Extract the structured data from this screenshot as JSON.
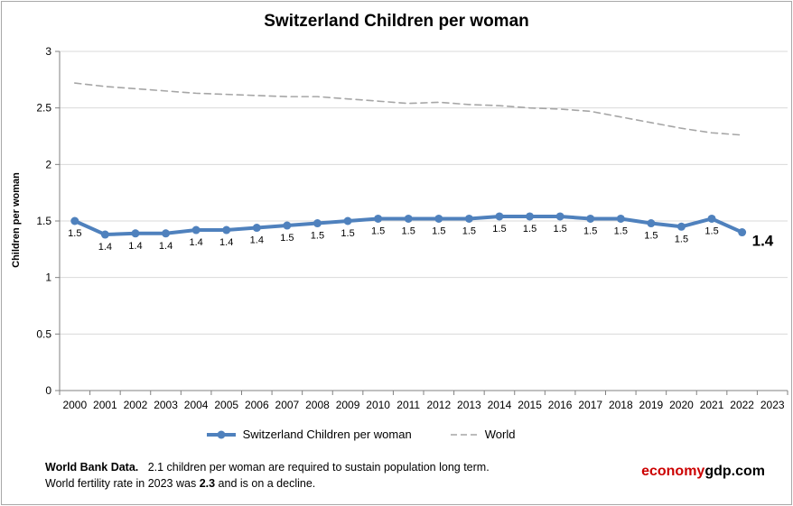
{
  "title": "Switzerland Children per woman",
  "colors": {
    "switzerland_line": "#4F81BD",
    "world_line": "#A6A6A6",
    "gridline": "#D9D9D9",
    "axis": "#808080",
    "brand_red": "#CC0000",
    "text": "#000000"
  },
  "chart_data": {
    "type": "line",
    "title": "Switzerland Children per woman",
    "xlabel": "",
    "ylabel": "Children per woman",
    "ylim": [
      0,
      3
    ],
    "ytick_step": 0.5,
    "grid": true,
    "legend_position": "bottom",
    "x": [
      "2000",
      "2001",
      "2002",
      "2003",
      "2004",
      "2005",
      "2006",
      "2007",
      "2008",
      "2009",
      "2010",
      "2011",
      "2012",
      "2013",
      "2014",
      "2015",
      "2016",
      "2017",
      "2018",
      "2019",
      "2020",
      "2021",
      "2022",
      "2023"
    ],
    "series": [
      {
        "name": "Switzerland Children per woman",
        "color": "#4F81BD",
        "style": "solid",
        "width": 4,
        "marker": "circle",
        "years": [
          2000,
          2001,
          2002,
          2003,
          2004,
          2005,
          2006,
          2007,
          2008,
          2009,
          2010,
          2011,
          2012,
          2013,
          2014,
          2015,
          2016,
          2017,
          2018,
          2019,
          2020,
          2021,
          2022
        ],
        "values": [
          1.5,
          1.38,
          1.39,
          1.39,
          1.42,
          1.42,
          1.44,
          1.46,
          1.48,
          1.5,
          1.52,
          1.52,
          1.52,
          1.52,
          1.54,
          1.54,
          1.54,
          1.52,
          1.52,
          1.48,
          1.45,
          1.52,
          1.4
        ],
        "point_labels": [
          "1.5",
          "1.4",
          "1.4",
          "1.4",
          "1.4",
          "1.4",
          "1.4",
          "1.5",
          "1.5",
          "1.5",
          "1.5",
          "1.5",
          "1.5",
          "1.5",
          "1.5",
          "1.5",
          "1.5",
          "1.5",
          "1.5",
          "1.5",
          "1.5",
          "1.5",
          "1.4"
        ],
        "last_label_emphasized": true
      },
      {
        "name": "World",
        "color": "#A6A6A6",
        "style": "dashed",
        "width": 1.6,
        "marker": "none",
        "years": [
          2000,
          2001,
          2002,
          2003,
          2004,
          2005,
          2006,
          2007,
          2008,
          2009,
          2010,
          2011,
          2012,
          2013,
          2014,
          2015,
          2016,
          2017,
          2018,
          2019,
          2020,
          2021,
          2022
        ],
        "values": [
          2.72,
          2.69,
          2.67,
          2.65,
          2.63,
          2.62,
          2.61,
          2.6,
          2.6,
          2.58,
          2.56,
          2.54,
          2.55,
          2.53,
          2.52,
          2.5,
          2.49,
          2.47,
          2.42,
          2.37,
          2.32,
          2.28,
          2.26
        ]
      }
    ]
  },
  "footer": {
    "source_bold": "World Bank Data.",
    "line1_rest": "2.1 children per woman are required to sustain population long term.",
    "line2_prefix": "World fertility rate in 2023 was ",
    "line2_bold": "2.3",
    "line2_suffix": " and is on a decline.",
    "brand_red_part": "economy",
    "brand_black_part": "gdp.com"
  }
}
